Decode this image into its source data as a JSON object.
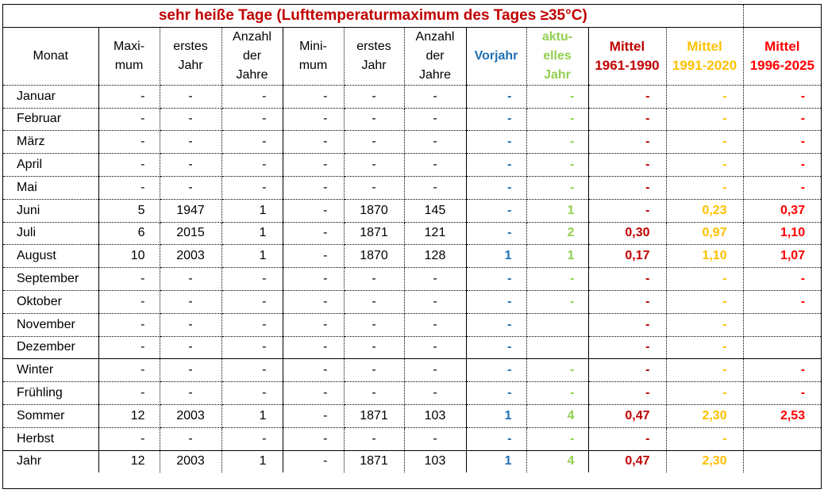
{
  "title": "sehr heiße Tage (Lufttemperaturmaximum des Tages ≥35°C)",
  "table": {
    "header": [
      [
        "Monat"
      ],
      [
        "Maxi-",
        "mum"
      ],
      [
        "erstes",
        "Jahr"
      ],
      [
        "Anzahl",
        "der",
        "Jahre"
      ],
      [
        "Mini-",
        "mum"
      ],
      [
        "erstes",
        "Jahr"
      ],
      [
        "Anzahl",
        "der",
        "Jahre"
      ],
      [
        "Vorjahr"
      ],
      [
        "aktu-",
        "elles",
        "Jahr"
      ],
      [
        "Mittel",
        "1961-1990"
      ],
      [
        "Mittel",
        "1991-2020"
      ],
      [
        "Mittel",
        "1996-2025"
      ]
    ],
    "rows": [
      [
        "Januar",
        "-",
        "-",
        "-",
        "-",
        "-",
        "-",
        "-",
        "-",
        "-",
        "-",
        "-"
      ],
      [
        "Februar",
        "-",
        "-",
        "-",
        "-",
        "-",
        "-",
        "-",
        "-",
        "-",
        "-",
        "-"
      ],
      [
        "März",
        "-",
        "-",
        "-",
        "-",
        "-",
        "-",
        "-",
        "-",
        "-",
        "-",
        "-"
      ],
      [
        "April",
        "-",
        "-",
        "-",
        "-",
        "-",
        "-",
        "-",
        "-",
        "-",
        "-",
        "-"
      ],
      [
        "Mai",
        "-",
        "-",
        "-",
        "-",
        "-",
        "-",
        "-",
        "-",
        "-",
        "-",
        "-"
      ],
      [
        "Juni",
        "5",
        "1947",
        "1",
        "-",
        "1870",
        "145",
        "-",
        "1",
        "-",
        "0,23",
        "0,37"
      ],
      [
        "Juli",
        "6",
        "2015",
        "1",
        "-",
        "1871",
        "121",
        "-",
        "2",
        "0,30",
        "0,97",
        "1,10"
      ],
      [
        "August",
        "10",
        "2003",
        "1",
        "-",
        "1870",
        "128",
        "1",
        "1",
        "0,17",
        "1,10",
        "1,07"
      ],
      [
        "September",
        "-",
        "-",
        "-",
        "-",
        "-",
        "-",
        "-",
        "-",
        "-",
        "-",
        "-"
      ],
      [
        "Oktober",
        "-",
        "-",
        "-",
        "-",
        "-",
        "-",
        "-",
        "-",
        "-",
        "-",
        "-"
      ],
      [
        "November",
        "-",
        "-",
        "-",
        "-",
        "-",
        "-",
        "-",
        null,
        "-",
        "-",
        null
      ],
      [
        "Dezember",
        "-",
        "-",
        "-",
        "-",
        "-",
        "-",
        "-",
        null,
        "-",
        "-",
        null
      ],
      [
        "Winter",
        "-",
        "-",
        "-",
        "-",
        "-",
        "-",
        "-",
        "-",
        "-",
        "-",
        "-"
      ],
      [
        "Frühling",
        "-",
        "-",
        "-",
        "-",
        "-",
        "-",
        "-",
        "-",
        "-",
        "-",
        "-"
      ],
      [
        "Sommer",
        "12",
        "2003",
        "1",
        "-",
        "1871",
        "103",
        "1",
        "4",
        "0,47",
        "2,30",
        "2,53"
      ],
      [
        "Herbst",
        "-",
        "-",
        "-",
        "-",
        "-",
        "-",
        "-",
        "-",
        "-",
        "-",
        null
      ],
      [
        "Jahr",
        "12",
        "2003",
        "1",
        "-",
        "1871",
        "103",
        "1",
        "4",
        "0,47",
        "2,30",
        null
      ]
    ]
  }
}
